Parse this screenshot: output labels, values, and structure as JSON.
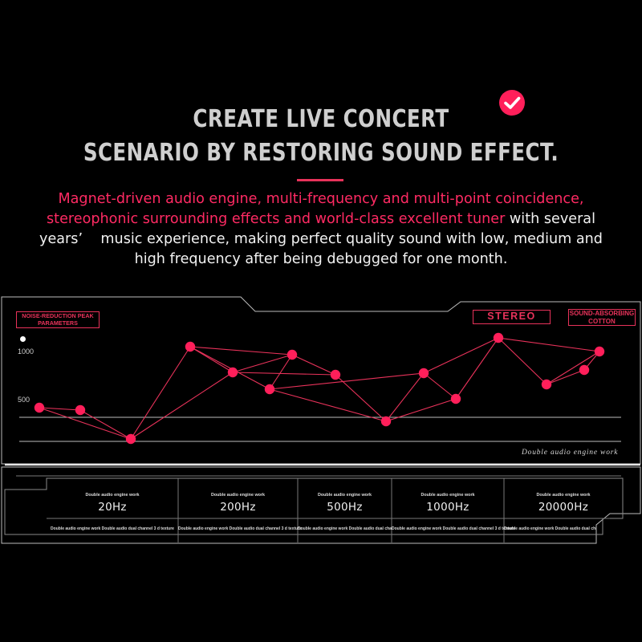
{
  "hero": {
    "check_icon": "check-circle-icon",
    "accent_color": "#ff1f5a",
    "title_line1": "CREATE LIVE CONCERT",
    "title_line2": "SCENARIO BY RESTORING SOUND EFFECT.",
    "intro_highlight": "Magnet-driven audio engine, multi-frequency and multi-point coincidence, stereophonic surrounding effects and world-class excellent tuner",
    "intro_rest": " with several years’    music experience, making perfect quality sound with low, medium and high frequency after being debugged for one month."
  },
  "panel": {
    "noise_label": "NOISE-REDUCTION PEAK PARAMETERS",
    "stereo_label": "STEREO",
    "sound_label": "SOUND-ABSORBING COTTON",
    "y_tick_1000": "1000",
    "y_tick_500": "500",
    "script_caption": "Double audio engine work",
    "line_color": "#e8325a",
    "point_color": "#ff1f5a"
  },
  "frequency_table": [
    {
      "caption": "Double audio engine work",
      "frequency": "20Hz",
      "footer": "Double audio engine work Double audio dual channel 3 d texture"
    },
    {
      "caption": "Double audio engine work",
      "frequency": "200Hz",
      "footer": "Double audio engine work Double audio dual channel 3 d texture"
    },
    {
      "caption": "Double audio engine work",
      "frequency": "500Hz",
      "footer": "Double audio engine work Double audio dual channel 3 d texture"
    },
    {
      "caption": "Double audio engine work",
      "frequency": "1000Hz",
      "footer": "Double audio engine work Double audio dual channel 3 d texture"
    },
    {
      "caption": "Double audio engine work",
      "frequency": "20000Hz",
      "footer": "Double audio engine work Double audio dual channel 3 d texture"
    }
  ]
}
